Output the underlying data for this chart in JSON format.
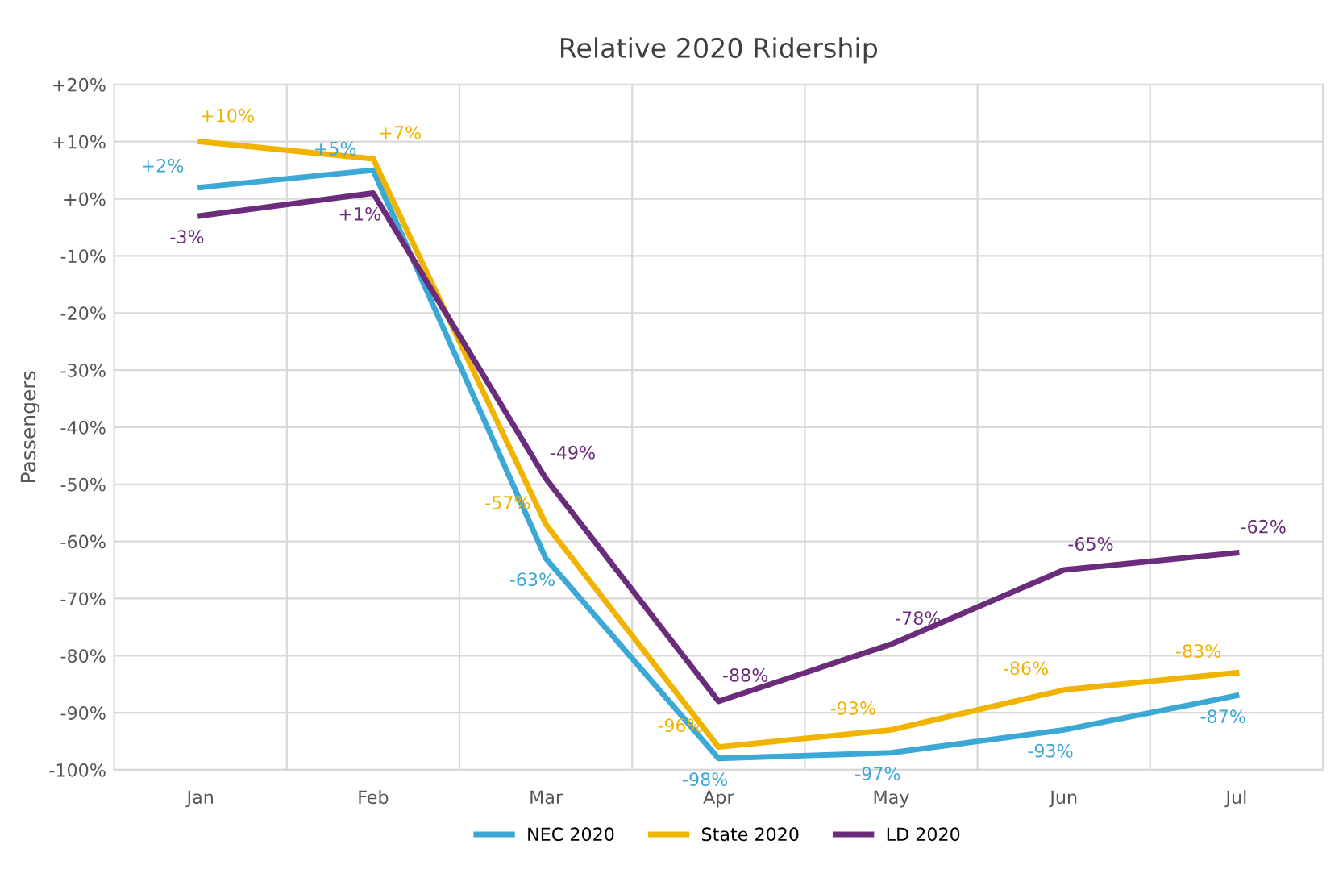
{
  "chart_data": {
    "type": "line",
    "title": "Relative 2020 Ridership",
    "ylabel": "Passengers",
    "categories": [
      "Jan",
      "Feb",
      "Mar",
      "Apr",
      "May",
      "Jun",
      "Jul"
    ],
    "series": [
      {
        "name": "NEC 2020",
        "color": "#3ba8d6",
        "values": [
          2,
          5,
          -63,
          -98,
          -97,
          -93,
          -87
        ],
        "value_labels": [
          "+2%",
          "+5%",
          "-63%",
          "-98%",
          "-97%",
          "-93%",
          "-87%"
        ]
      },
      {
        "name": "State 2020",
        "color": "#f0b400",
        "values": [
          10,
          7,
          -57,
          -96,
          -93,
          -86,
          -83
        ],
        "value_labels": [
          "+10%",
          "+7%",
          "-57%",
          "-96%",
          "-93%",
          "-86%",
          "-83%"
        ]
      },
      {
        "name": "LD 2020",
        "color": "#6b2d7b",
        "values": [
          -3,
          1,
          -49,
          -88,
          -78,
          -65,
          -62
        ],
        "value_labels": [
          "-3%",
          "+1%",
          "-49%",
          "-88%",
          "-78%",
          "-65%",
          "-62%"
        ]
      }
    ],
    "ylim": [
      -100,
      20
    ],
    "yticks": [
      {
        "value": 20,
        "label": "+20%"
      },
      {
        "value": 10,
        "label": "+10%"
      },
      {
        "value": 0,
        "label": "+0%"
      },
      {
        "value": -10,
        "label": "-10%"
      },
      {
        "value": -20,
        "label": "-20%"
      },
      {
        "value": -30,
        "label": "-30%"
      },
      {
        "value": -40,
        "label": "-40%"
      },
      {
        "value": -50,
        "label": "-50%"
      },
      {
        "value": -60,
        "label": "-60%"
      },
      {
        "value": -70,
        "label": "-70%"
      },
      {
        "value": -80,
        "label": "-80%"
      },
      {
        "value": -90,
        "label": "-90%"
      },
      {
        "value": -100,
        "label": "-100%"
      }
    ],
    "grid": true,
    "legend": "bottom",
    "marker": "none",
    "line_style": "solid"
  }
}
